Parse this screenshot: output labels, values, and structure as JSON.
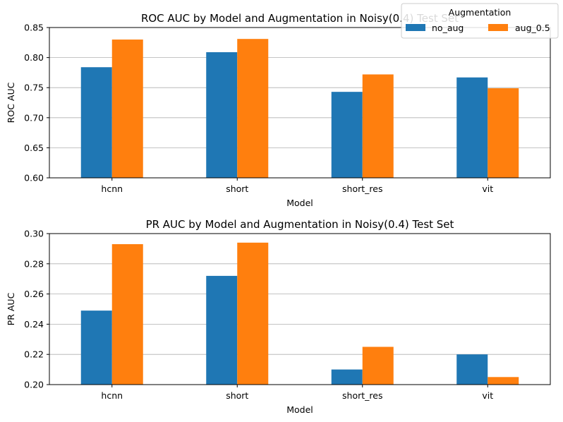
{
  "colors": {
    "no_aug": "#1f77b4",
    "aug_0.5": "#ff7f0e",
    "grid": "#b0b0b0"
  },
  "legend": {
    "title": "Augmentation",
    "entries": [
      "no_aug",
      "aug_0.5"
    ],
    "placement": "top-right"
  },
  "chart_data": [
    {
      "type": "bar",
      "title": "ROC AUC by Model and Augmentation in Noisy(0.4) Test Set",
      "xlabel": "Model",
      "ylabel": "ROC AUC",
      "categories": [
        "hcnn",
        "short",
        "short_res",
        "vit"
      ],
      "series": [
        {
          "name": "no_aug",
          "values": [
            0.784,
            0.809,
            0.743,
            0.767
          ]
        },
        {
          "name": "aug_0.5",
          "values": [
            0.83,
            0.831,
            0.772,
            0.749
          ]
        }
      ],
      "ylim": [
        0.6,
        0.85
      ],
      "yticks": [
        "0.60",
        "0.65",
        "0.70",
        "0.75",
        "0.80",
        "0.85"
      ],
      "grid": "y"
    },
    {
      "type": "bar",
      "title": "PR AUC by Model and Augmentation in Noisy(0.4) Test Set",
      "xlabel": "Model",
      "ylabel": "PR AUC",
      "categories": [
        "hcnn",
        "short",
        "short_res",
        "vit"
      ],
      "series": [
        {
          "name": "no_aug",
          "values": [
            0.249,
            0.272,
            0.21,
            0.22
          ]
        },
        {
          "name": "aug_0.5",
          "values": [
            0.293,
            0.294,
            0.225,
            0.205
          ]
        }
      ],
      "ylim": [
        0.2,
        0.3
      ],
      "yticks": [
        "0.20",
        "0.22",
        "0.24",
        "0.26",
        "0.28",
        "0.30"
      ],
      "grid": "y"
    }
  ]
}
